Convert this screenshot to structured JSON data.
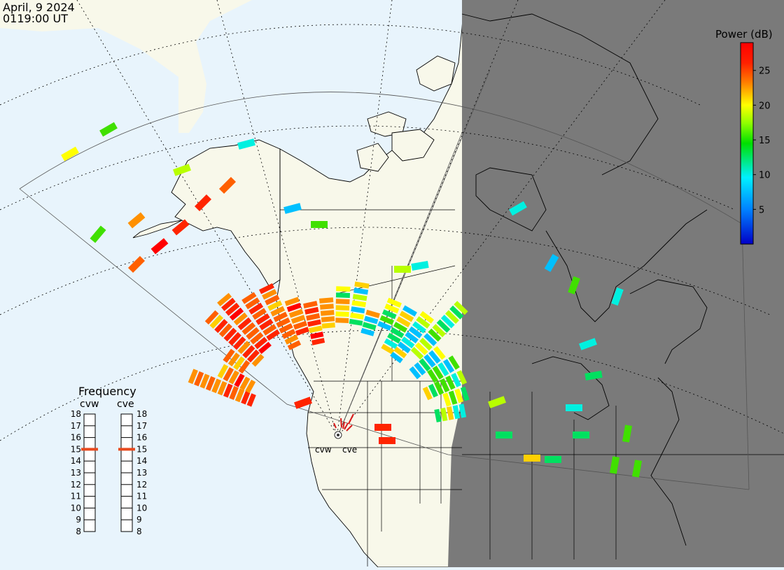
{
  "header": {
    "date": "April, 9 2024",
    "time": "0119:00 UT"
  },
  "colorbar": {
    "title": "Power (dB)",
    "ticks": [
      25,
      20,
      15,
      10,
      5
    ],
    "range": [
      0,
      29
    ]
  },
  "frequency_panel": {
    "title": "Frequency",
    "radars": [
      {
        "id": "cvw",
        "label": "cvw",
        "freq": 15
      },
      {
        "id": "cve",
        "label": "cve",
        "freq": 15
      }
    ],
    "scale": [
      18,
      17,
      16,
      15,
      14,
      13,
      12,
      11,
      10,
      9,
      8
    ],
    "indicator_color": "#e84a1f"
  },
  "station_labels": {
    "cvw": "cvw",
    "cve": "cve"
  },
  "colors": {
    "ocean": "#e8f4fc",
    "land": "#f8f8ea",
    "night": "#7a7a7a",
    "border": "#000000"
  },
  "chart_data": {
    "type": "heatmap",
    "units": "dB",
    "range": [
      0,
      29
    ]
  }
}
